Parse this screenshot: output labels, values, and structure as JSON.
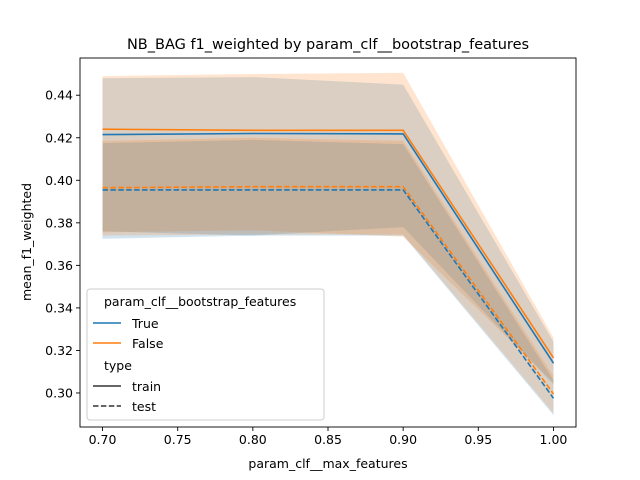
{
  "chart_data": {
    "type": "line",
    "title": "NB_BAG f1_weighted by param_clf__bootstrap_features",
    "xlabel": "param_clf__max_features",
    "ylabel": "mean_f1_weighted",
    "xlim": [
      0.685,
      1.015
    ],
    "ylim": [
      0.284,
      0.4575
    ],
    "x": [
      0.7,
      0.8,
      0.9,
      1.0
    ],
    "xticks": [
      "0.70",
      "0.75",
      "0.80",
      "0.85",
      "0.90",
      "0.95",
      "1.00"
    ],
    "xtick_values": [
      0.7,
      0.75,
      0.8,
      0.85,
      0.9,
      0.95,
      1.0
    ],
    "yticks": [
      "0.30",
      "0.32",
      "0.34",
      "0.36",
      "0.38",
      "0.40",
      "0.42",
      "0.44"
    ],
    "ytick_values": [
      0.3,
      0.32,
      0.34,
      0.36,
      0.38,
      0.4,
      0.42,
      0.44
    ],
    "grid": false,
    "legend": {
      "placement": "lower-left",
      "hue_title": "param_clf__bootstrap_features",
      "hue_entries": [
        {
          "label": "True",
          "color": "#1f77b4"
        },
        {
          "label": "False",
          "color": "#ff7f0e"
        }
      ],
      "style_title": "type",
      "style_entries": [
        {
          "label": "train",
          "dash": "solid"
        },
        {
          "label": "test",
          "dash": "dashed"
        }
      ]
    },
    "series": [
      {
        "name": "True",
        "type": "train",
        "color": "#1f77b4",
        "dashed": false,
        "values": [
          0.4215,
          0.422,
          0.4218,
          0.314
        ],
        "lower": [
          0.376,
          0.374,
          0.378,
          0.304
        ],
        "upper": [
          0.448,
          0.4485,
          0.445,
          0.324
        ]
      },
      {
        "name": "False",
        "type": "train",
        "color": "#ff7f0e",
        "dashed": false,
        "values": [
          0.424,
          0.4235,
          0.4235,
          0.3165
        ],
        "lower": [
          0.3755,
          0.3765,
          0.3735,
          0.305
        ],
        "upper": [
          0.449,
          0.45,
          0.4505,
          0.326
        ]
      },
      {
        "name": "True",
        "type": "test",
        "color": "#1f77b4",
        "dashed": true,
        "values": [
          0.3955,
          0.3955,
          0.3955,
          0.2975
        ],
        "lower": [
          0.3725,
          0.374,
          0.374,
          0.2895
        ],
        "upper": [
          0.4175,
          0.419,
          0.417,
          0.306
        ]
      },
      {
        "name": "False",
        "type": "test",
        "color": "#ff7f0e",
        "dashed": true,
        "values": [
          0.3965,
          0.397,
          0.397,
          0.2995
        ],
        "lower": [
          0.374,
          0.3745,
          0.3745,
          0.2905
        ],
        "upper": [
          0.4185,
          0.42,
          0.4185,
          0.308
        ]
      }
    ]
  }
}
